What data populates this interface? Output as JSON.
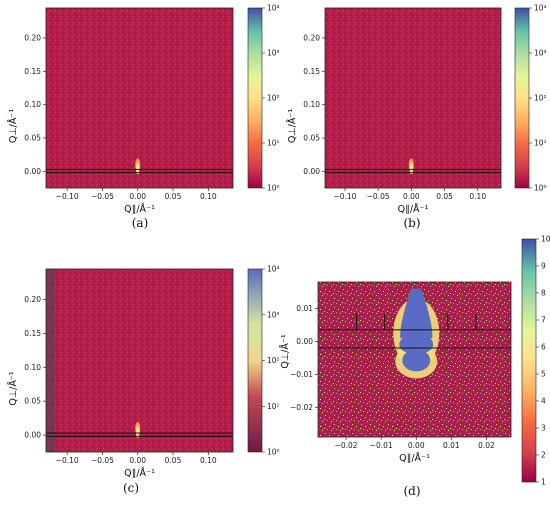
{
  "colors": {
    "background_map": "#b71c4c",
    "hot_spot": "#f7f36b",
    "saturated_blob": "#5a6bc3",
    "frame": "#222222"
  },
  "colormap": "Spectral_r",
  "chart_data": [
    {
      "type": "heatmap",
      "panel": "(a)",
      "xlabel": "Q∥/Å⁻¹",
      "ylabel": "Q⊥/Å⁻¹",
      "xlim": [
        -0.13,
        0.135
      ],
      "ylim": [
        -0.025,
        0.245
      ],
      "xticks": [
        -0.1,
        -0.05,
        0.0,
        0.05,
        0.1
      ],
      "xticklabels": [
        "−0.10",
        "−0.05",
        "0.00",
        "0.05",
        "0.10"
      ],
      "yticks": [
        0.0,
        0.05,
        0.1,
        0.15,
        0.2
      ],
      "yticklabels": [
        "0.00",
        "0.05",
        "0.10",
        "0.15",
        "0.20"
      ],
      "colorbar": {
        "scale": "log",
        "range": [
          1,
          10000
        ],
        "ticklabels": [
          "10⁰",
          "10¹",
          "10²",
          "10³",
          "10⁴"
        ]
      },
      "band": [
        -0.002,
        0.003
      ],
      "peak": {
        "x": 0.0,
        "y": 0.0
      }
    },
    {
      "type": "heatmap",
      "panel": "(b)",
      "xlabel": "Q∥/Å⁻¹",
      "ylabel": "Q⊥/Å⁻¹",
      "xlim": [
        -0.13,
        0.135
      ],
      "ylim": [
        -0.025,
        0.245
      ],
      "xticks": [
        -0.1,
        -0.05,
        0.0,
        0.05,
        0.1
      ],
      "xticklabels": [
        "−0.10",
        "−0.05",
        "0.00",
        "0.05",
        "0.10"
      ],
      "yticks": [
        0.0,
        0.05,
        0.1,
        0.15,
        0.2
      ],
      "yticklabels": [
        "0.00",
        "0.05",
        "0.10",
        "0.15",
        "0.20"
      ],
      "colorbar": {
        "scale": "log",
        "range": [
          1,
          10000
        ],
        "ticklabels": [
          "10⁰",
          "10¹",
          "10²",
          "10³",
          "10⁴"
        ]
      },
      "band": [
        -0.002,
        0.003
      ],
      "peak": {
        "x": 0.0,
        "y": 0.0
      }
    },
    {
      "type": "heatmap",
      "panel": "(c)",
      "xlabel": "Q∥/Å⁻¹",
      "ylabel": "Q⊥/Å⁻¹",
      "xlim": [
        -0.13,
        0.135
      ],
      "ylim": [
        -0.025,
        0.245
      ],
      "xticks": [
        -0.1,
        -0.05,
        0.0,
        0.05,
        0.1
      ],
      "xticklabels": [
        "−0.10",
        "−0.05",
        "0.00",
        "0.05",
        "0.10"
      ],
      "yticks": [
        0.0,
        0.05,
        0.1,
        0.15,
        0.2
      ],
      "yticklabels": [
        "0.00",
        "0.05",
        "0.10",
        "0.15",
        "0.20"
      ],
      "colorbar": {
        "scale": "log",
        "range": [
          1,
          10000
        ],
        "ticklabels": [
          "10⁰",
          "10¹",
          "10²",
          "10³",
          "10⁴"
        ]
      },
      "band": [
        -0.002,
        0.003
      ],
      "peak": {
        "x": 0.0,
        "y": 0.0
      }
    },
    {
      "type": "heatmap",
      "panel": "(d)",
      "xlabel": "Q∥/Å⁻¹",
      "ylabel": "Q⊥/Å⁻¹",
      "xlim": [
        -0.028,
        0.027
      ],
      "ylim": [
        -0.029,
        0.018
      ],
      "xticks": [
        -0.02,
        -0.01,
        0.0,
        0.01,
        0.02
      ],
      "xticklabels": [
        "−0.02",
        "−0.01",
        "0.00",
        "0.01",
        "0.02"
      ],
      "yticks": [
        -0.02,
        -0.01,
        0.0,
        0.01
      ],
      "yticklabels": [
        "−0.02",
        "−0.01",
        "0.00",
        "0.01"
      ],
      "colorbar": {
        "scale": "linear",
        "range": [
          1,
          10
        ],
        "ticklabels": [
          "1",
          "2",
          "3",
          "4",
          "5",
          "6",
          "7",
          "8",
          "9",
          "10"
        ]
      },
      "band": [
        -0.002,
        0.0035
      ],
      "peak": {
        "x": 0.0,
        "y": 0.0
      }
    }
  ]
}
